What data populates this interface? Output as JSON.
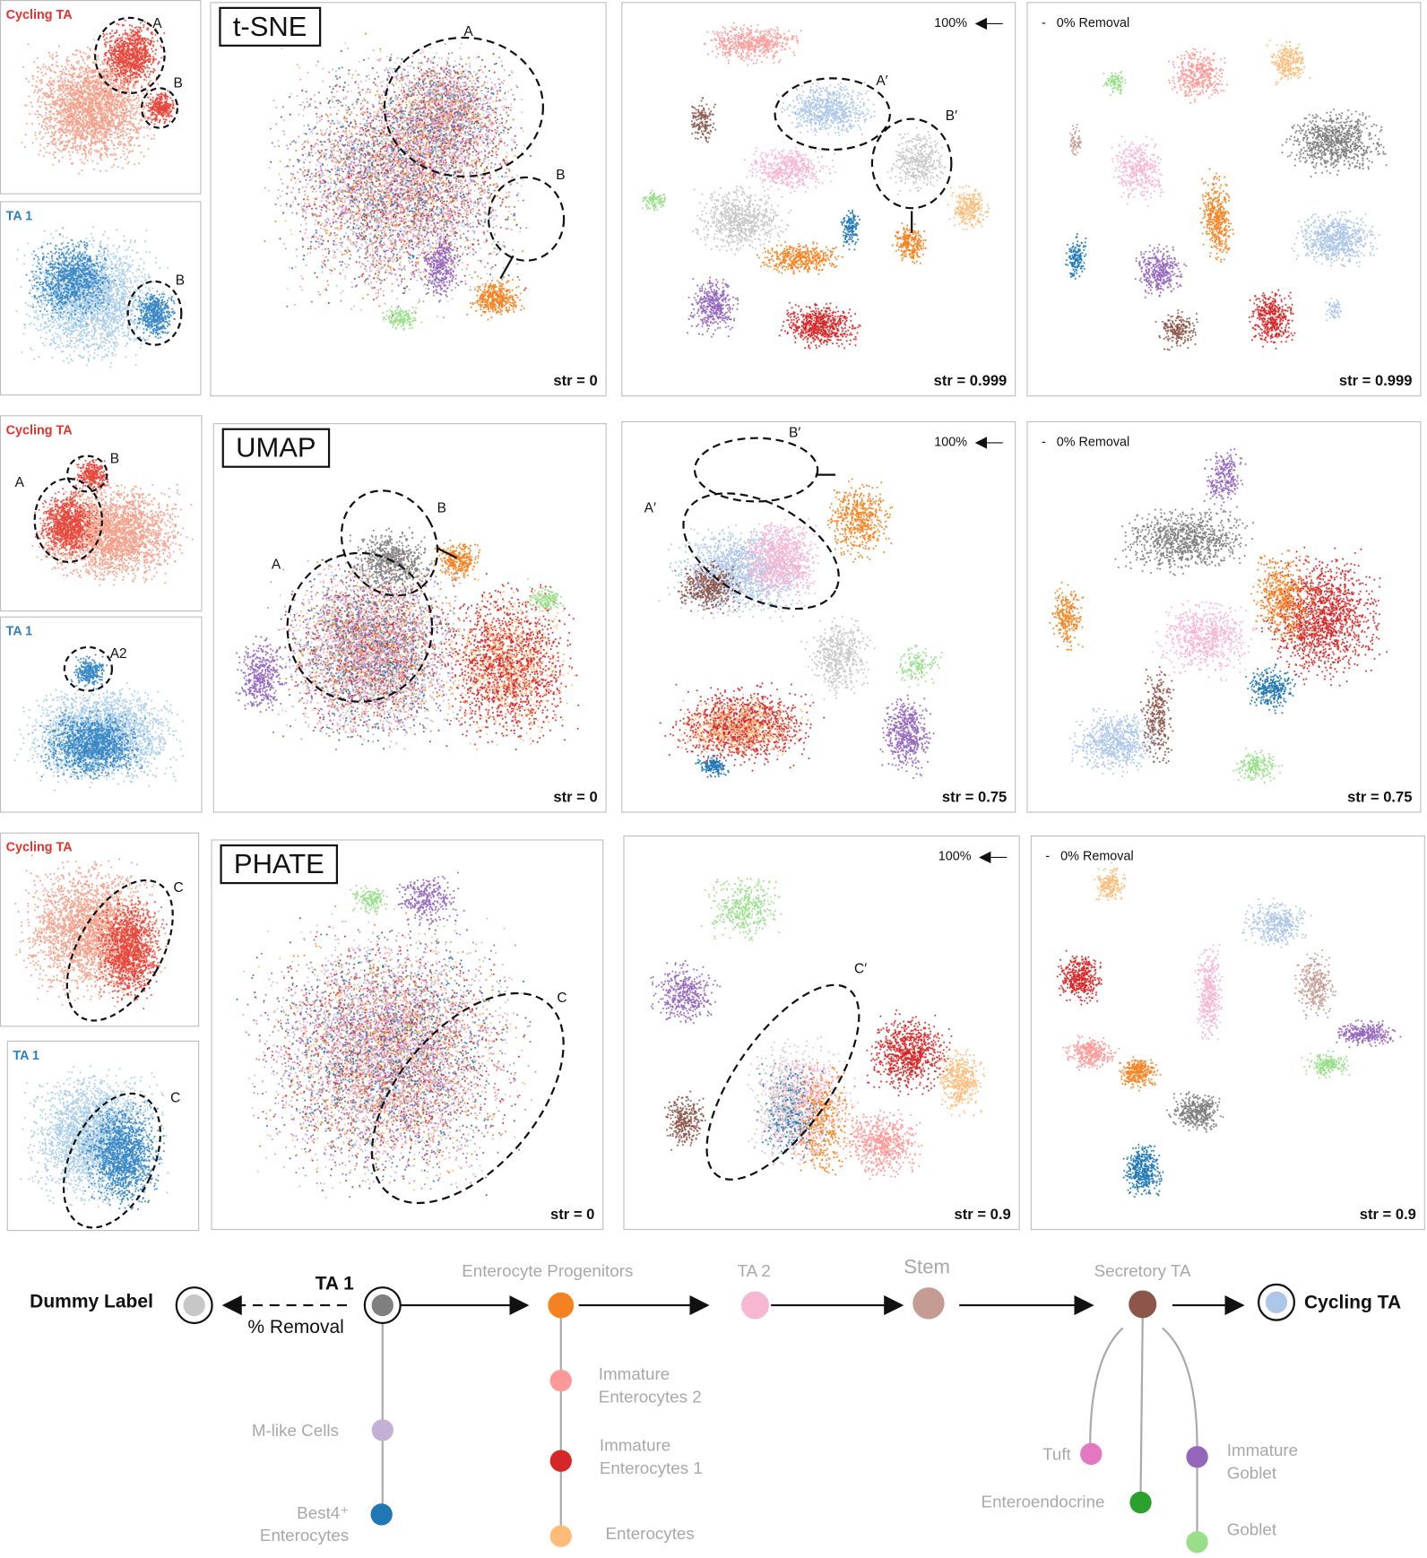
{
  "rows": [
    {
      "method": "t-SNE",
      "small": [
        {
          "label": "Cycling TA",
          "letters": [
            "A",
            "B"
          ]
        },
        {
          "label": "TA 1",
          "letters": [
            "B"
          ]
        }
      ],
      "main": {
        "str": "str = 0",
        "letters": [
          "A",
          "B"
        ]
      },
      "mid": {
        "pct": "100%",
        "str": "str = 0.999",
        "letters": [
          "A′",
          "B′"
        ]
      },
      "right": {
        "removal": "-   0% Removal",
        "str": "str = 0.999"
      }
    },
    {
      "method": "UMAP",
      "small": [
        {
          "label": "Cycling TA",
          "letters": [
            "A",
            "B"
          ]
        },
        {
          "label": "TA 1",
          "letters": [
            "A2"
          ]
        }
      ],
      "main": {
        "str": "str = 0",
        "letters": [
          "A",
          "B"
        ]
      },
      "mid": {
        "pct": "100%",
        "str": "str = 0.75",
        "letters": [
          "A′",
          "B′"
        ]
      },
      "right": {
        "removal": "-   0% Removal",
        "str": "str = 0.75"
      }
    },
    {
      "method": "PHATE",
      "small": [
        {
          "label": "Cycling TA",
          "letters": [
            "C"
          ]
        },
        {
          "label": "TA 1",
          "letters": [
            "C"
          ]
        }
      ],
      "main": {
        "str": "str = 0",
        "letters": [
          "C"
        ]
      },
      "mid": {
        "pct": "100%",
        "str": "str = 0.9",
        "letters": [
          "C′"
        ]
      },
      "right": {
        "removal": "-   0% Removal",
        "str": "str = 0.9"
      }
    }
  ],
  "legend": {
    "dummy": {
      "label": "Dummy Label",
      "color": "#c7c7c7"
    },
    "ta1": {
      "label": "TA 1",
      "color": "#7f7f7f"
    },
    "removal": "% Removal",
    "ep": {
      "label": "Enterocyte Progenitors",
      "color": "#f58220"
    },
    "ta2": {
      "label": "TA 2",
      "color": "#f7b6d2"
    },
    "stem": {
      "label": "Stem",
      "color": "#c49c94"
    },
    "sec": {
      "label": "Secretory TA",
      "color": "#8c564b"
    },
    "cyc": {
      "label": "Cycling TA",
      "color": "#aec7e8"
    },
    "mlike": {
      "label": "M-like Cells",
      "color": "#c5b0d5"
    },
    "best4": {
      "label": "Best4⁺ Enterocytes",
      "color": "#1f77b4"
    },
    "ie2": {
      "label": "Immature Enterocytes 2",
      "color": "#ff9896"
    },
    "ie1": {
      "label": "Immature Enterocytes 1",
      "color": "#d62728"
    },
    "ent": {
      "label": "Enterocytes",
      "color": "#ffbb78"
    },
    "tuft": {
      "label": "Tuft",
      "color": "#e377c2"
    },
    "ee": {
      "label": "Enteroendocrine",
      "color": "#2ca02c"
    },
    "ig": {
      "label": "Immature Goblet",
      "color": "#9467bd"
    },
    "gob": {
      "label": "Goblet",
      "color": "#98df8a"
    }
  }
}
